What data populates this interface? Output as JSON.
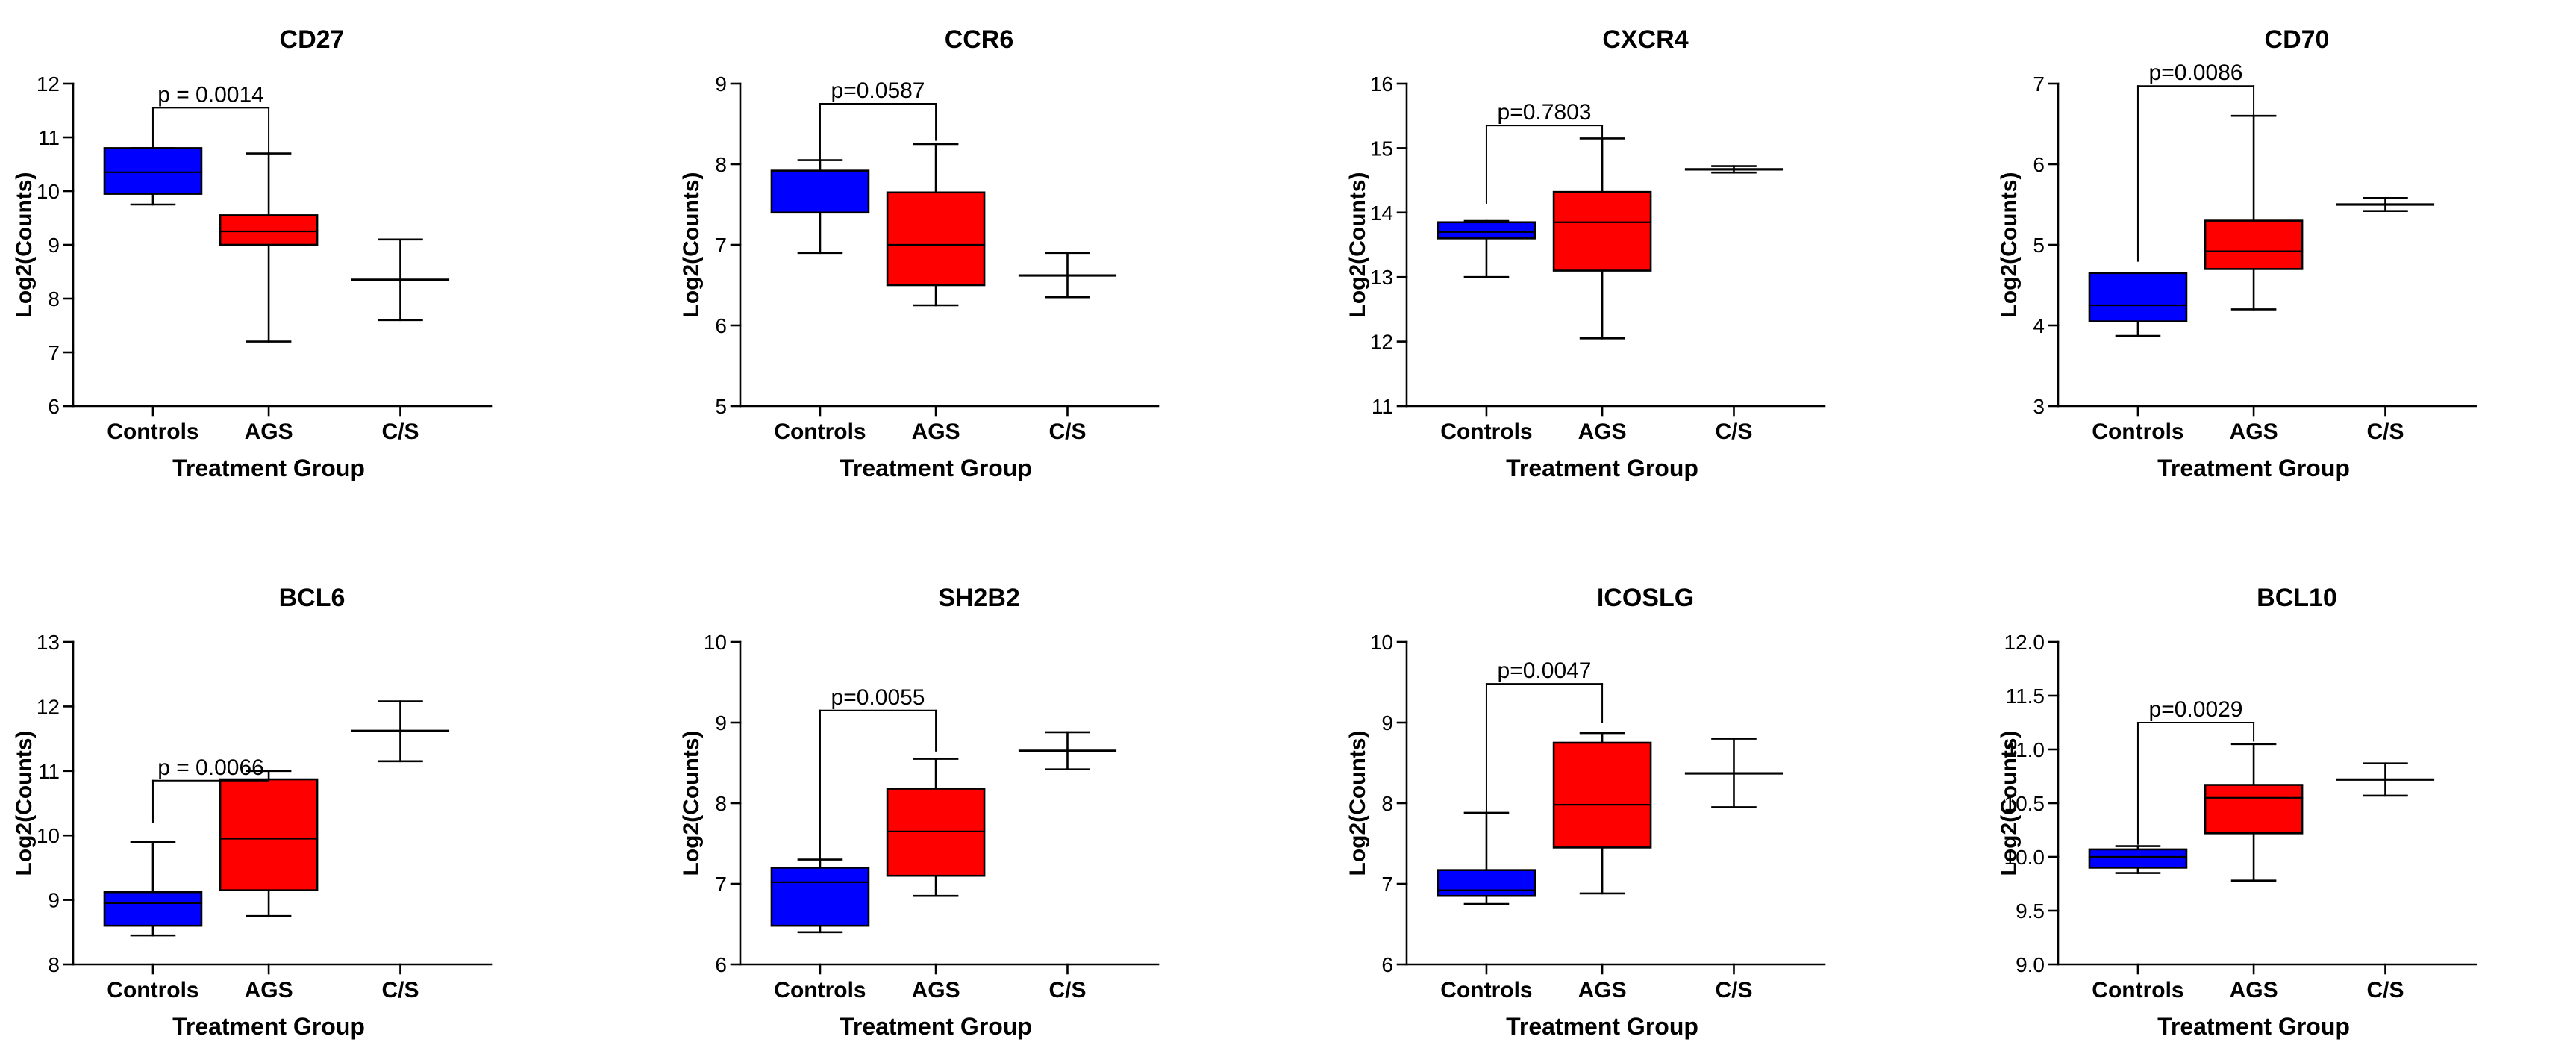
{
  "figure": {
    "xlabel": "Treatment Group",
    "ylabel": "Log2(Counts)"
  },
  "colors": {
    "Controls": "#0000ff",
    "AGS": "#ff0000",
    "C/S": "#ffffff",
    "stroke": "#000000"
  },
  "chart_data": [
    {
      "type": "box",
      "title": "CD27",
      "xlabel": "Treatment Group",
      "ylabel": "Log2(Counts)",
      "ylim": [
        6,
        12
      ],
      "yticks": [
        "6",
        "7",
        "8",
        "9",
        "10",
        "11",
        "12"
      ],
      "categories": [
        "Controls",
        "AGS",
        "C/S"
      ],
      "series": [
        {
          "name": "Controls",
          "box": true,
          "min": 9.75,
          "q1": 9.95,
          "median": 10.35,
          "q3": 10.8,
          "max": 10.8
        },
        {
          "name": "AGS",
          "box": true,
          "min": 7.2,
          "q1": 9.0,
          "median": 9.25,
          "q3": 9.55,
          "max": 10.7
        },
        {
          "name": "C/S",
          "box": false,
          "min": 7.6,
          "median": 8.35,
          "max": 9.1
        }
      ],
      "annotation": {
        "text": "p = 0.0014",
        "from": "Controls",
        "to": "AGS",
        "top": 11.55,
        "left_end": 10.8,
        "right_end": 10.7
      }
    },
    {
      "type": "box",
      "title": "CCR6",
      "xlabel": "Treatment Group",
      "ylabel": "Log2(Counts)",
      "ylim": [
        5,
        9
      ],
      "yticks": [
        "5",
        "6",
        "7",
        "8",
        "9"
      ],
      "categories": [
        "Controls",
        "AGS",
        "C/S"
      ],
      "series": [
        {
          "name": "Controls",
          "box": true,
          "min": 6.9,
          "q1": 7.4,
          "median": 7.4,
          "q3": 7.92,
          "max": 8.05
        },
        {
          "name": "AGS",
          "box": true,
          "min": 6.25,
          "q1": 6.5,
          "median": 7.0,
          "q3": 7.65,
          "max": 8.25
        },
        {
          "name": "C/S",
          "box": false,
          "min": 6.35,
          "median": 6.62,
          "max": 6.9
        }
      ],
      "annotation": {
        "text": "p=0.0587",
        "from": "Controls",
        "to": "AGS",
        "top": 8.75,
        "left_end": 8.05,
        "right_end": 8.3
      }
    },
    {
      "type": "box",
      "title": "CXCR4",
      "xlabel": "Treatment Group",
      "ylabel": "Log2(Counts)",
      "ylim": [
        11,
        16
      ],
      "yticks": [
        "11",
        "12",
        "13",
        "14",
        "15",
        "16"
      ],
      "categories": [
        "Controls",
        "AGS",
        "C/S"
      ],
      "series": [
        {
          "name": "Controls",
          "box": true,
          "min": 13.0,
          "q1": 13.6,
          "median": 13.7,
          "q3": 13.85,
          "max": 13.87
        },
        {
          "name": "AGS",
          "box": true,
          "min": 12.05,
          "q1": 13.1,
          "median": 13.85,
          "q3": 14.32,
          "max": 15.15
        },
        {
          "name": "C/S",
          "box": false,
          "min": 14.62,
          "median": 14.67,
          "max": 14.72
        }
      ],
      "annotation": {
        "text": "p=0.7803",
        "from": "Controls",
        "to": "AGS",
        "top": 15.35,
        "left_end": 14.15,
        "right_end": 15.15
      }
    },
    {
      "type": "box",
      "title": "CD70",
      "xlabel": "Treatment Group",
      "ylabel": "Log2(Counts)",
      "ylim": [
        3,
        7
      ],
      "yticks": [
        "3",
        "4",
        "5",
        "6",
        "7"
      ],
      "categories": [
        "Controls",
        "AGS",
        "C/S"
      ],
      "series": [
        {
          "name": "Controls",
          "box": true,
          "min": 3.87,
          "q1": 4.05,
          "median": 4.25,
          "q3": 4.65,
          "max": 4.65
        },
        {
          "name": "AGS",
          "box": true,
          "min": 4.2,
          "q1": 4.7,
          "median": 4.92,
          "q3": 5.3,
          "max": 6.6
        },
        {
          "name": "C/S",
          "box": false,
          "min": 5.42,
          "median": 5.5,
          "max": 5.58
        }
      ],
      "annotation": {
        "text": "p=0.0086",
        "from": "Controls",
        "to": "AGS",
        "top": 6.97,
        "left_end": 4.8,
        "right_end": 6.6
      }
    },
    {
      "type": "box",
      "title": "BCL6",
      "xlabel": "Treatment Group",
      "ylabel": "Log2(Counts)",
      "ylim": [
        8,
        13
      ],
      "yticks": [
        "8",
        "9",
        "10",
        "11",
        "12",
        "13"
      ],
      "categories": [
        "Controls",
        "AGS",
        "C/S"
      ],
      "series": [
        {
          "name": "Controls",
          "box": true,
          "min": 8.45,
          "q1": 8.6,
          "median": 8.95,
          "q3": 9.12,
          "max": 9.9
        },
        {
          "name": "AGS",
          "box": true,
          "min": 8.75,
          "q1": 9.15,
          "median": 9.95,
          "q3": 10.87,
          "max": 11.0
        },
        {
          "name": "C/S",
          "box": false,
          "min": 11.15,
          "median": 11.62,
          "max": 12.08
        }
      ],
      "annotation": {
        "text": "p = 0.0066",
        "from": "Controls",
        "to": "AGS",
        "top": 10.85,
        "left_end": 10.2,
        "right_end": 11.0
      }
    },
    {
      "type": "box",
      "title": "SH2B2",
      "xlabel": "Treatment Group",
      "ylabel": "Log2(Counts)",
      "ylim": [
        6,
        10
      ],
      "yticks": [
        "6",
        "7",
        "8",
        "9",
        "10"
      ],
      "categories": [
        "Controls",
        "AGS",
        "C/S"
      ],
      "series": [
        {
          "name": "Controls",
          "box": true,
          "min": 6.4,
          "q1": 6.48,
          "median": 7.02,
          "q3": 7.2,
          "max": 7.3
        },
        {
          "name": "AGS",
          "box": true,
          "min": 6.85,
          "q1": 7.1,
          "median": 7.65,
          "q3": 8.18,
          "max": 8.55
        },
        {
          "name": "C/S",
          "box": false,
          "min": 8.42,
          "median": 8.65,
          "max": 8.88
        }
      ],
      "annotation": {
        "text": "p=0.0055",
        "from": "Controls",
        "to": "AGS",
        "top": 9.15,
        "left_end": 7.3,
        "right_end": 8.65
      }
    },
    {
      "type": "box",
      "title": "ICOSLG",
      "xlabel": "Treatment Group",
      "ylabel": "Log2(Counts)",
      "ylim": [
        6,
        10
      ],
      "yticks": [
        "6",
        "7",
        "8",
        "9",
        "10"
      ],
      "categories": [
        "Controls",
        "AGS",
        "C/S"
      ],
      "series": [
        {
          "name": "Controls",
          "box": true,
          "min": 6.75,
          "q1": 6.85,
          "median": 6.92,
          "q3": 7.17,
          "max": 7.88
        },
        {
          "name": "AGS",
          "box": true,
          "min": 6.88,
          "q1": 7.45,
          "median": 7.98,
          "q3": 8.75,
          "max": 8.87
        },
        {
          "name": "C/S",
          "box": false,
          "min": 7.95,
          "median": 8.37,
          "max": 8.8
        }
      ],
      "annotation": {
        "text": "p=0.0047",
        "from": "Controls",
        "to": "AGS",
        "top": 9.48,
        "left_end": 7.9,
        "right_end": 9.0
      }
    },
    {
      "type": "box",
      "title": "BCL10",
      "xlabel": "Treatment Group",
      "ylabel": "Log2(Counts)",
      "ylim": [
        9.0,
        12.0
      ],
      "yticks": [
        "9.0",
        "9.5",
        "10.0",
        "10.5",
        "11.0",
        "11.5",
        "12.0"
      ],
      "categories": [
        "Controls",
        "AGS",
        "C/S"
      ],
      "series": [
        {
          "name": "Controls",
          "box": true,
          "min": 9.85,
          "q1": 9.9,
          "median": 10.0,
          "q3": 10.07,
          "max": 10.1
        },
        {
          "name": "AGS",
          "box": true,
          "min": 9.78,
          "q1": 10.22,
          "median": 10.55,
          "q3": 10.67,
          "max": 11.05
        },
        {
          "name": "C/S",
          "box": false,
          "min": 10.57,
          "median": 10.72,
          "max": 10.87
        }
      ],
      "annotation": {
        "text": "p=0.0029",
        "from": "Controls",
        "to": "AGS",
        "top": 11.25,
        "left_end": 10.12,
        "right_end": 11.08
      }
    }
  ]
}
